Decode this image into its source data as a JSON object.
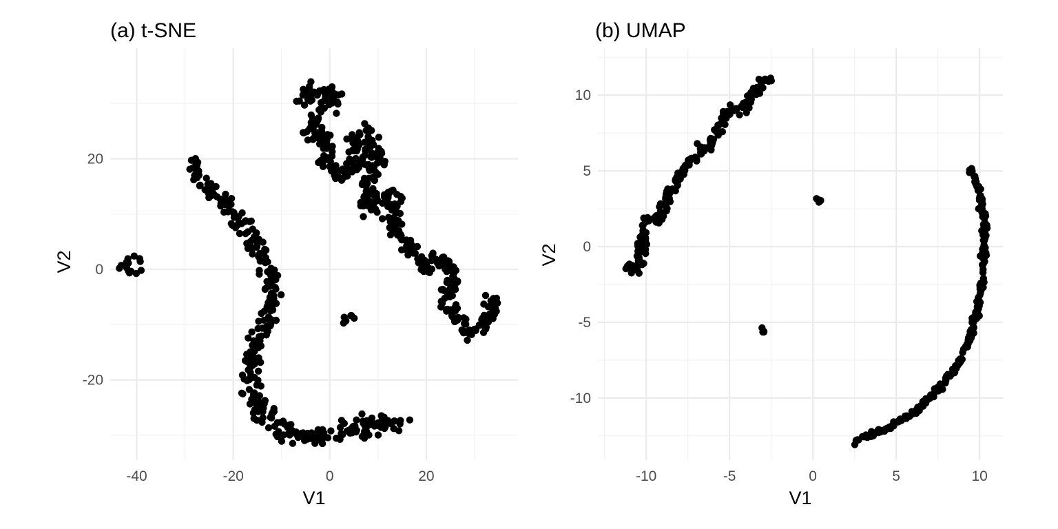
{
  "chart_data": [
    {
      "type": "scatter",
      "title": "(a) t-SNE",
      "xlabel": "V1",
      "ylabel": "V2",
      "xlim": [
        -45.5,
        39
      ],
      "ylim": [
        -34.5,
        40
      ],
      "x_ticks": [
        -40,
        -20,
        0,
        20
      ],
      "y_ticks": [
        -20,
        0,
        20
      ],
      "grid": true,
      "point_color": "#000000",
      "clusters": [
        {
          "path": [
            [
              -43.5,
              1
            ],
            [
              -39.5,
              1
            ]
          ],
          "spread": 2.2
        },
        {
          "path": [
            [
              4.2,
              -9.5
            ],
            [
              4.6,
              -8.8
            ]
          ],
          "spread": 1.7
        },
        {
          "path": [
            [
              -29,
              19.5
            ],
            [
              -25.5,
              15.5
            ],
            [
              -21,
              11
            ],
            [
              -17,
              6.5
            ],
            [
              -13.5,
              2
            ],
            [
              -11.5,
              -3
            ],
            [
              -12.5,
              -9
            ],
            [
              -15.5,
              -15
            ],
            [
              -16.5,
              -21
            ],
            [
              -14.5,
              -25
            ],
            [
              -11.5,
              -28
            ],
            [
              -8,
              -29.5
            ],
            [
              -3,
              -30
            ],
            [
              2,
              -30
            ],
            [
              7,
              -28.5
            ],
            [
              10.5,
              -27.5
            ],
            [
              15,
              -28
            ]
          ],
          "spread": 1.8
        },
        {
          "path": [
            [
              -6.5,
              30
            ],
            [
              -2.5,
              32.5
            ],
            [
              1,
              31.5
            ],
            [
              -2.5,
              27
            ],
            [
              -5,
              24.5
            ],
            [
              -1,
              24
            ],
            [
              -1.5,
              19.5
            ],
            [
              2,
              17.5
            ],
            [
              4.5,
              19
            ],
            [
              7.5,
              19.5
            ],
            [
              5,
              23.5
            ],
            [
              7.5,
              25
            ],
            [
              10,
              21
            ],
            [
              8,
              14
            ],
            [
              7,
              11
            ],
            [
              12,
              13.5
            ],
            [
              14,
              12.5
            ],
            [
              12.5,
              9
            ],
            [
              15.5,
              5
            ],
            [
              18.5,
              2
            ],
            [
              20,
              0
            ],
            [
              21.5,
              2
            ],
            [
              24.5,
              1
            ],
            [
              25.5,
              -3
            ],
            [
              23.5,
              -6.5
            ],
            [
              26.5,
              -9
            ],
            [
              28.5,
              -11
            ],
            [
              31,
              -11.5
            ],
            [
              33,
              -8
            ],
            [
              34,
              -5
            ]
          ],
          "spread": 1.6
        }
      ]
    },
    {
      "type": "scatter",
      "title": "(b) UMAP",
      "xlabel": "V1",
      "ylabel": "V2",
      "xlim": [
        -12.9,
        11.4
      ],
      "ylim": [
        -14.1,
        13.1
      ],
      "x_ticks": [
        -10,
        -5,
        0,
        5,
        10
      ],
      "y_ticks": [
        -10,
        -5,
        0,
        5,
        10
      ],
      "grid": true,
      "point_color": "#000000",
      "clusters": [
        {
          "path": [
            [
              -11.5,
              -1.5
            ],
            [
              -10.3,
              -1.2
            ],
            [
              -10.2,
              1.5
            ],
            [
              -9.2,
              2
            ],
            [
              -8.6,
              3.5
            ],
            [
              -7.5,
              5.5
            ],
            [
              -6,
              7
            ],
            [
              -5.2,
              8.8
            ],
            [
              -4.2,
              9.2
            ],
            [
              -3.5,
              10.2
            ],
            [
              -2.6,
              11.2
            ]
          ],
          "spread": 0.32
        },
        {
          "path": [
            [
              0.2,
              3.2
            ],
            [
              0.5,
              2.9
            ]
          ],
          "spread": 0.1
        },
        {
          "path": [
            [
              -3.1,
              -5.4
            ],
            [
              -2.9,
              -5.7
            ]
          ],
          "spread": 0.12
        },
        {
          "path": [
            [
              9.5,
              5.1
            ],
            [
              9.8,
              4.2
            ],
            [
              10.1,
              3
            ],
            [
              10.3,
              1.5
            ],
            [
              10.3,
              0
            ],
            [
              10.2,
              -2
            ],
            [
              9.9,
              -4
            ],
            [
              9.4,
              -6
            ],
            [
              8.6,
              -8
            ],
            [
              7.5,
              -9.5
            ],
            [
              6,
              -11
            ],
            [
              4.5,
              -12
            ],
            [
              2.5,
              -12.9
            ]
          ],
          "spread": 0.15
        }
      ]
    }
  ]
}
